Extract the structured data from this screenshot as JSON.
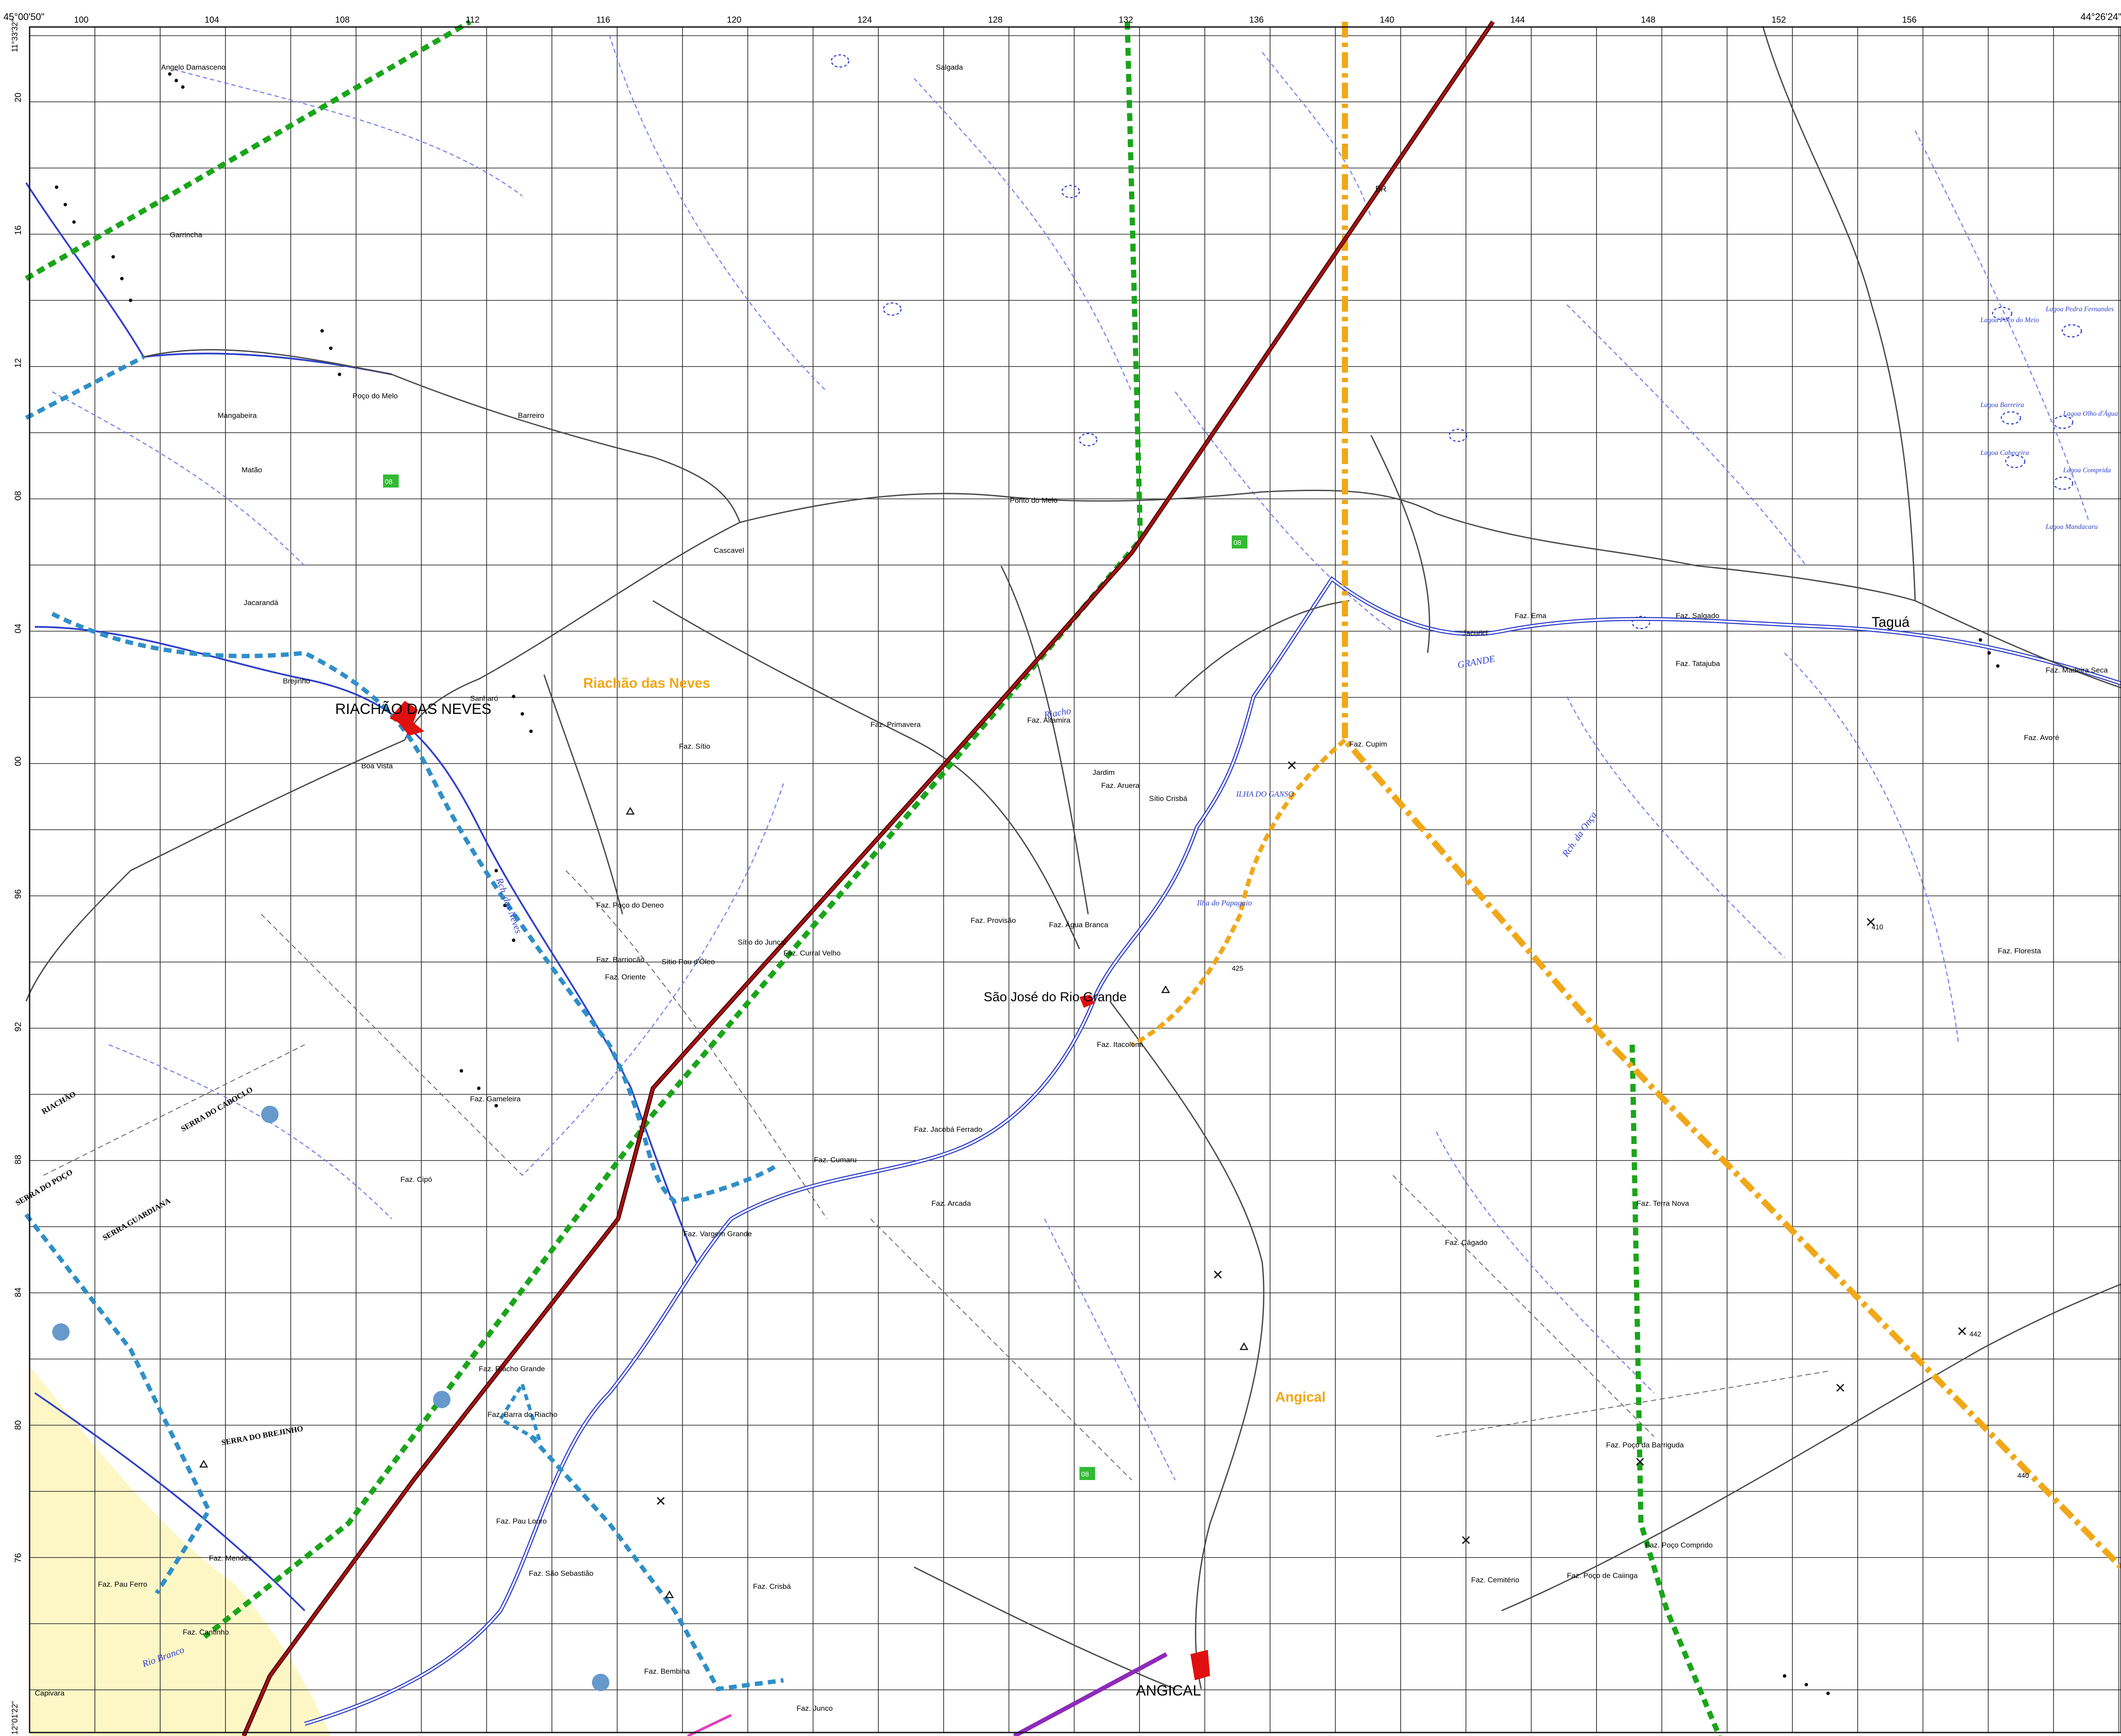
{
  "corners": {
    "top_left": "45°00'50\"",
    "top_right": "44°26'24\"",
    "left_top": "11°33'32\"",
    "left_bottom": "12°01'22\""
  },
  "top_ticks": [
    "100",
    "104",
    "108",
    "112",
    "116",
    "120",
    "124",
    "128",
    "132",
    "136",
    "140",
    "144",
    "148",
    "152",
    "156"
  ],
  "left_ticks": [
    "20",
    "16",
    "12",
    "08",
    "04",
    "00",
    "96",
    "92",
    "88",
    "84",
    "80",
    "76"
  ],
  "places": {
    "riachao_das_neves_city": "RIACHÃO DAS NEVES",
    "riachao_municipality": "Riachão das Neves",
    "sao_jose": "São José do Rio Grande",
    "angical_city": "ANGICAL",
    "angical_municipality": "Angical",
    "taguas": "Taguá"
  },
  "localities": [
    "Angelo Damasceno",
    "Garrincha",
    "Poço do Melo",
    "Mangabeira",
    "Matão",
    "Barreiro",
    "Cascavel",
    "Ponto do Melo",
    "Sanharó",
    "Jacarandá",
    "Brejinho",
    "Boa Vista",
    "Salgada",
    "Jacurici",
    "Faz. Primavera",
    "Faz. Altamira",
    "Jardim",
    "Faz. Aruera",
    "Sítio Crisbá",
    "Faz. Cupim",
    "Faz. Provisão",
    "Faz. Água Branca",
    "Faz. Itacolomi",
    "Faz. Poço do Deneo",
    "Faz. Barriocão",
    "Faz. Oriente",
    "Sítio Pau d'Óleo",
    "Sítio do Juncal",
    "Faz. Curral Velho",
    "Faz. Gameleira",
    "Faz. Jacobá Ferrado",
    "Faz. Cumaru",
    "Faz. Arcada",
    "Faz. Vargem Grande",
    "Faz. Riacho Grande",
    "Faz. Barra do Riacho",
    "Faz. Pau Louro",
    "Faz. São Sebastião",
    "Faz. Cipó",
    "Faz. Crisbá",
    "Faz. Bembina",
    "Faz. Junco",
    "Faz. Terra Nova",
    "Faz. Cágado",
    "Faz. Poço da Barriguda",
    "Faz. Poço Comprido",
    "Faz. Poço de Caiinga",
    "Faz. Cemitério",
    "Faz. Floresta",
    "Faz. Madeira Seca",
    "Faz. Avoré",
    "Faz. Mendes",
    "Faz. Cantinho",
    "Capivara",
    "Faz. Ema",
    "Faz. Tatajuba",
    "Faz. Pau Ferro",
    "Faz. Sítio",
    "Faz. Salgado"
  ],
  "rivers": [
    "GRANDE",
    "Rio Branco",
    "Riacho",
    "Rch. das Neves",
    "Rch. da Onça"
  ],
  "ridges": [
    "SERRA DO POÇO",
    "SERRA GUARDIANA",
    "SERRA DO CABOCLO",
    "SERRA DO BREJINHO",
    "RIACHÃO"
  ],
  "lagoas": [
    "Lagoa Poço do Meio",
    "Lagoa Pedra Fernandes",
    "Lagoa Barreira",
    "Lagoa Olho d'Água",
    "Lagoa Cabeceira",
    "Lagoa Comprida",
    "Lagoa Mandacaru"
  ],
  "islands": [
    "ILHA DO GANSO",
    "Ilha do Papagaio"
  ],
  "road_labels": [
    "BR",
    "08",
    "08",
    "08"
  ],
  "spot_heights": [
    "442",
    "440",
    "410",
    "425"
  ],
  "colors": {
    "grid": "#222222",
    "water": "#2f3fcc",
    "stream": "#7780ee",
    "road": "#4a4a4a",
    "highway_red": "#b01010",
    "municipal_green": "#1aa51a",
    "municipal_orange": "#f0a818",
    "state_blue": "#2f8fc8",
    "urban_red": "#e01010",
    "land_yellow": "#fdf7c6",
    "label_orange": "#f0a818",
    "badge_green": "#33bb33",
    "badge_blue": "#6699cc"
  }
}
